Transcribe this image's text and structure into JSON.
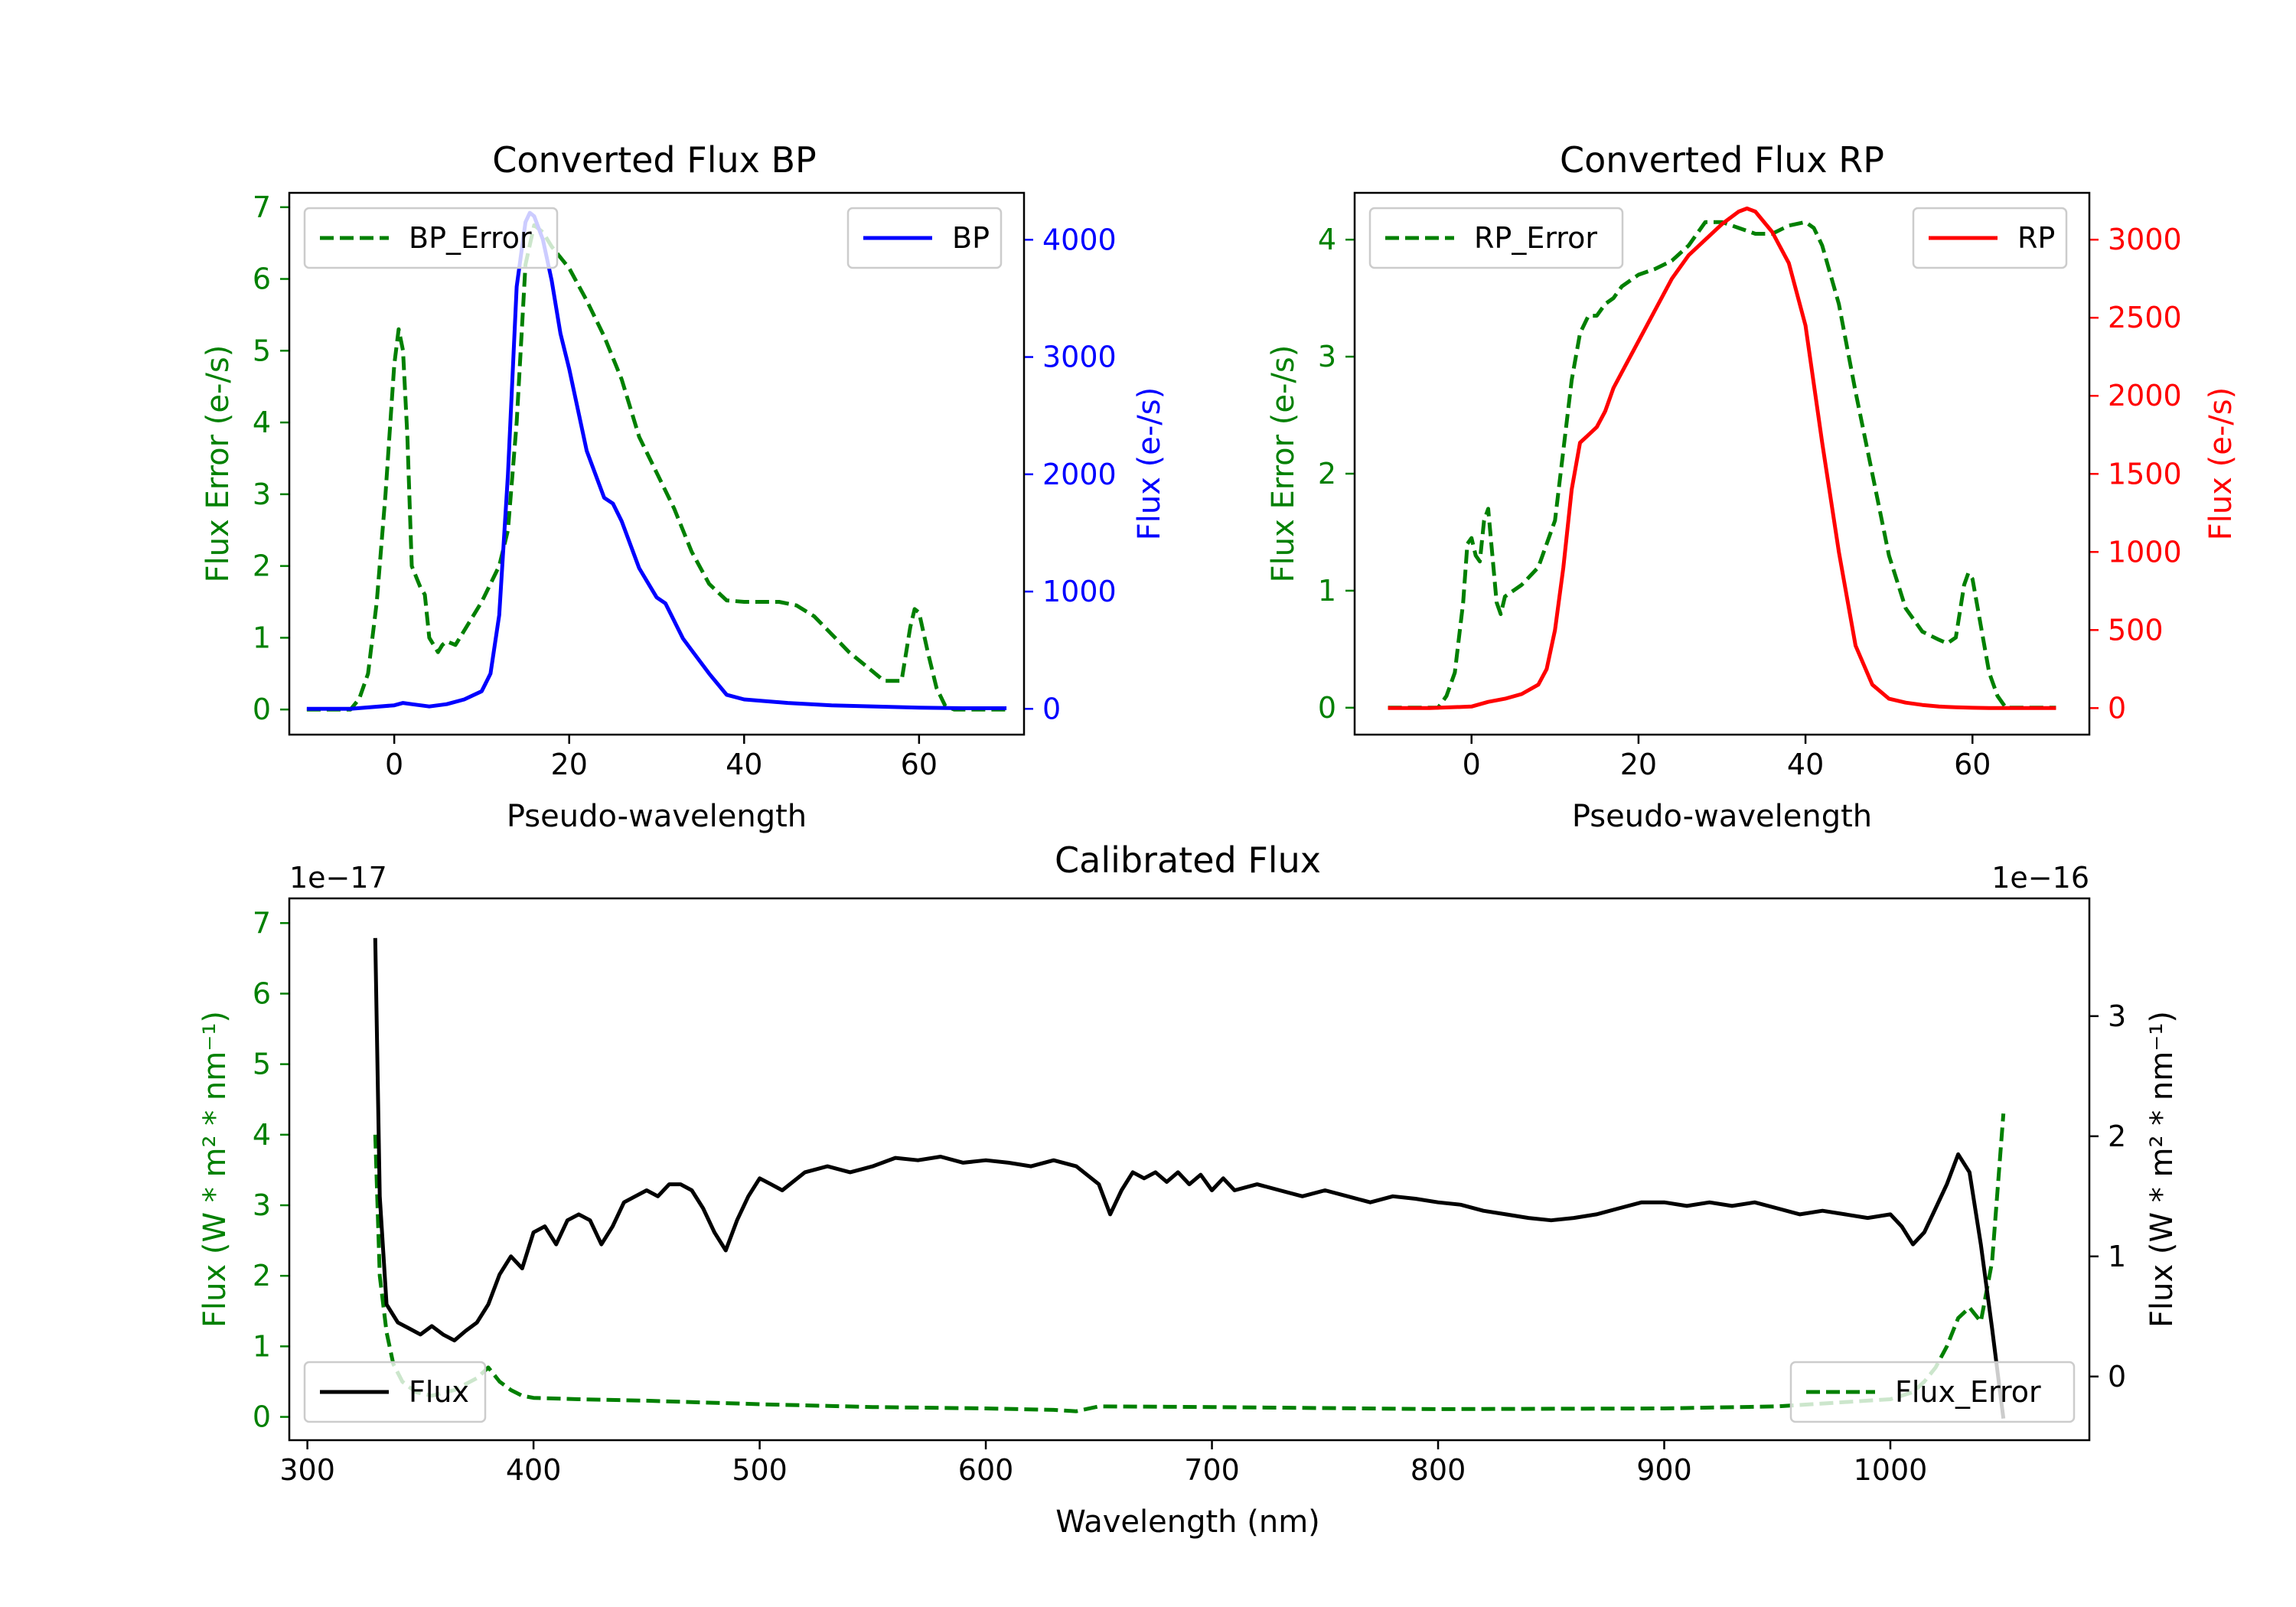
{
  "colors": {
    "error": "#008000",
    "bp": "#0000ff",
    "rp": "#ff0000",
    "flux": "#000000"
  },
  "chart_data": [
    {
      "id": "bp",
      "type": "line",
      "title": "Converted Flux BP",
      "xlabel": "Pseudo-wavelength",
      "ylabel_left": "Flux Error (e-/s)",
      "ylabel_right": "Flux (e-/s)",
      "xlim": [
        -12,
        72
      ],
      "ylim_left": [
        -0.35,
        7.2
      ],
      "ylim_right": [
        -220,
        4400
      ],
      "xticks": [
        "0",
        "20",
        "40",
        "60"
      ],
      "xtick_values": [
        0,
        20,
        40,
        60
      ],
      "yticks_left": [
        "0",
        "1",
        "2",
        "3",
        "4",
        "5",
        "6",
        "7"
      ],
      "ytick_values_left": [
        0,
        1,
        2,
        3,
        4,
        5,
        6,
        7
      ],
      "yticks_right": [
        "0",
        "1000",
        "2000",
        "3000",
        "4000"
      ],
      "ytick_values_right": [
        0,
        1000,
        2000,
        3000,
        4000
      ],
      "legend_left": "BP_Error",
      "legend_right": "BP",
      "series": [
        {
          "name": "BP_Error",
          "axis": "left",
          "style": "dashed",
          "color": "#008000",
          "x": [
            -10,
            -5,
            -4,
            -3,
            -2,
            -1,
            0,
            0.5,
            1,
            1.5,
            2,
            3,
            3.5,
            4,
            5,
            5.5,
            6,
            7,
            8,
            10,
            12,
            13,
            14,
            15,
            16,
            17,
            18,
            20,
            22,
            24,
            26,
            28,
            30,
            32,
            34,
            36,
            38,
            40,
            42,
            44,
            46,
            48,
            50,
            52,
            54,
            56,
            58,
            59,
            59.5,
            60,
            61,
            62,
            63,
            64,
            66,
            68,
            70
          ],
          "y": [
            0,
            0,
            0.15,
            0.5,
            1.5,
            3.0,
            4.8,
            5.3,
            5.0,
            3.8,
            2.0,
            1.7,
            1.6,
            1.0,
            0.8,
            0.9,
            0.95,
            0.9,
            1.1,
            1.5,
            2.0,
            2.5,
            4.0,
            6.2,
            6.75,
            6.65,
            6.45,
            6.15,
            5.7,
            5.2,
            4.6,
            3.8,
            3.3,
            2.8,
            2.2,
            1.75,
            1.52,
            1.5,
            1.5,
            1.5,
            1.45,
            1.3,
            1.05,
            0.8,
            0.6,
            0.4,
            0.4,
            1.15,
            1.4,
            1.35,
            0.8,
            0.3,
            0.05,
            0,
            0,
            0,
            0
          ]
        },
        {
          "name": "BP",
          "axis": "right",
          "style": "solid",
          "color": "#0000ff",
          "x": [
            -10,
            -5,
            0,
            1,
            2,
            4,
            6,
            8,
            10,
            11,
            12,
            13,
            14,
            15,
            15.5,
            16,
            17,
            18,
            19,
            20,
            22,
            24,
            25,
            26,
            27,
            28,
            30,
            31,
            32,
            33,
            34,
            36,
            38,
            40,
            45,
            50,
            55,
            60,
            65,
            70
          ],
          "y": [
            0,
            0,
            30,
            50,
            40,
            20,
            40,
            80,
            150,
            300,
            800,
            2000,
            3600,
            4150,
            4230,
            4200,
            4000,
            3650,
            3200,
            2900,
            2200,
            1800,
            1750,
            1600,
            1400,
            1200,
            950,
            900,
            750,
            600,
            500,
            300,
            120,
            80,
            50,
            30,
            20,
            10,
            5,
            5
          ]
        }
      ]
    },
    {
      "id": "rp",
      "type": "line",
      "title": "Converted Flux RP",
      "xlabel": "Pseudo-wavelength",
      "ylabel_left": "Flux Error (e-/s)",
      "ylabel_right": "Flux (e-/s)",
      "xlim": [
        -14,
        74
      ],
      "ylim_left": [
        -0.23,
        4.4
      ],
      "ylim_right": [
        -170,
        3300
      ],
      "xticks": [
        "0",
        "20",
        "40",
        "60"
      ],
      "xtick_values": [
        0,
        20,
        40,
        60
      ],
      "yticks_left": [
        "0",
        "1",
        "2",
        "3",
        "4"
      ],
      "ytick_values_left": [
        0,
        1,
        2,
        3,
        4
      ],
      "yticks_right": [
        "0",
        "500",
        "1000",
        "1500",
        "2000",
        "2500",
        "3000"
      ],
      "ytick_values_right": [
        0,
        500,
        1000,
        1500,
        2000,
        2500,
        3000
      ],
      "legend_left": "RP_Error",
      "legend_right": "RP",
      "series": [
        {
          "name": "RP_Error",
          "axis": "left",
          "style": "dashed",
          "color": "#008000",
          "x": [
            -10,
            -4,
            -3,
            -2,
            -1,
            -0.5,
            0,
            0.5,
            1,
            1.5,
            2,
            2.5,
            3,
            3.5,
            4,
            5,
            6,
            8,
            10,
            11,
            12,
            13,
            14,
            15,
            16,
            17,
            18,
            20,
            22,
            24,
            26,
            28,
            30,
            32,
            34,
            36,
            38,
            40,
            41,
            42,
            44,
            46,
            48,
            50,
            52,
            54,
            56,
            57,
            58,
            59,
            59.5,
            60,
            61,
            62,
            63,
            64,
            66,
            68,
            70
          ],
          "y": [
            0,
            0,
            0.1,
            0.3,
            0.9,
            1.4,
            1.45,
            1.3,
            1.25,
            1.6,
            1.7,
            1.3,
            0.9,
            0.8,
            0.95,
            1.0,
            1.05,
            1.2,
            1.6,
            2.2,
            2.8,
            3.2,
            3.35,
            3.35,
            3.45,
            3.5,
            3.6,
            3.7,
            3.75,
            3.82,
            3.95,
            4.15,
            4.15,
            4.1,
            4.05,
            4.05,
            4.12,
            4.15,
            4.1,
            3.95,
            3.45,
            2.7,
            2.0,
            1.3,
            0.85,
            0.65,
            0.58,
            0.55,
            0.6,
            1.05,
            1.15,
            1.1,
            0.7,
            0.3,
            0.1,
            0,
            0,
            0,
            0
          ]
        },
        {
          "name": "RP",
          "axis": "right",
          "style": "solid",
          "color": "#ff0000",
          "x": [
            -10,
            -5,
            0,
            2,
            4,
            6,
            8,
            9,
            10,
            11,
            12,
            13,
            14,
            15,
            16,
            17,
            18,
            20,
            22,
            24,
            26,
            28,
            30,
            32,
            33,
            34,
            36,
            37,
            38,
            40,
            42,
            44,
            46,
            48,
            50,
            52,
            54,
            56,
            58,
            60,
            62,
            65,
            70
          ],
          "y": [
            0,
            0,
            10,
            40,
            60,
            90,
            150,
            250,
            500,
            900,
            1400,
            1700,
            1750,
            1800,
            1900,
            2050,
            2150,
            2350,
            2550,
            2750,
            2900,
            3000,
            3100,
            3180,
            3200,
            3180,
            3050,
            2950,
            2850,
            2450,
            1700,
            1000,
            400,
            150,
            60,
            35,
            20,
            10,
            5,
            2,
            0,
            0,
            0
          ]
        }
      ]
    },
    {
      "id": "cal",
      "type": "line",
      "title": "Calibrated Flux",
      "xlabel": "Wavelength (nm)",
      "ylabel_left": "Flux (W * m² * nm⁻¹)",
      "ylabel_right": "Flux (W * m² * nm⁻¹)",
      "offset_left": "1e−17",
      "offset_right": "1e−16",
      "xlim": [
        292,
        1088
      ],
      "ylim_left": [
        -0.33,
        7.35
      ],
      "ylim_right": [
        -0.53,
        3.98
      ],
      "xticks": [
        "300",
        "400",
        "500",
        "600",
        "700",
        "800",
        "900",
        "1000"
      ],
      "xtick_values": [
        300,
        400,
        500,
        600,
        700,
        800,
        900,
        1000
      ],
      "yticks_left": [
        "0",
        "1",
        "2",
        "3",
        "4",
        "5",
        "6",
        "7"
      ],
      "ytick_values_left": [
        0,
        1,
        2,
        3,
        4,
        5,
        6,
        7
      ],
      "yticks_right": [
        "0",
        "1",
        "2",
        "3"
      ],
      "ytick_values_right": [
        0,
        1,
        2,
        3
      ],
      "legend_left": "Flux",
      "legend_right": "Flux_Error",
      "series": [
        {
          "name": "Flux_Error",
          "axis": "left",
          "style": "dashed",
          "color": "#008000",
          "x": [
            330,
            332,
            335,
            338,
            342,
            348,
            355,
            365,
            375,
            380,
            385,
            390,
            395,
            400,
            420,
            450,
            500,
            550,
            600,
            630,
            640,
            650,
            700,
            800,
            900,
            950,
            1000,
            1010,
            1015,
            1020,
            1025,
            1030,
            1035,
            1040,
            1045,
            1050
          ],
          "y": [
            4.0,
            2.0,
            1.2,
            0.75,
            0.5,
            0.35,
            0.3,
            0.38,
            0.55,
            0.7,
            0.5,
            0.38,
            0.3,
            0.27,
            0.25,
            0.23,
            0.18,
            0.14,
            0.12,
            0.1,
            0.08,
            0.15,
            0.14,
            0.11,
            0.12,
            0.15,
            0.25,
            0.35,
            0.5,
            0.7,
            1.0,
            1.4,
            1.55,
            1.35,
            2.2,
            4.3
          ]
        },
        {
          "name": "Flux",
          "axis": "right",
          "style": "solid",
          "color": "#000000",
          "x": [
            330,
            332,
            335,
            340,
            345,
            350,
            355,
            360,
            365,
            370,
            375,
            380,
            385,
            390,
            395,
            400,
            405,
            410,
            415,
            420,
            425,
            430,
            435,
            440,
            445,
            450,
            455,
            460,
            465,
            470,
            475,
            480,
            485,
            490,
            495,
            500,
            505,
            510,
            520,
            530,
            540,
            550,
            560,
            570,
            580,
            590,
            600,
            610,
            620,
            630,
            640,
            650,
            655,
            660,
            665,
            670,
            675,
            680,
            685,
            690,
            695,
            700,
            705,
            710,
            720,
            730,
            740,
            750,
            760,
            770,
            780,
            790,
            800,
            810,
            820,
            830,
            840,
            850,
            860,
            870,
            880,
            890,
            900,
            910,
            920,
            930,
            940,
            950,
            960,
            970,
            980,
            990,
            1000,
            1005,
            1010,
            1015,
            1020,
            1025,
            1030,
            1035,
            1040,
            1045,
            1050
          ],
          "y": [
            3.65,
            1.5,
            0.6,
            0.45,
            0.4,
            0.35,
            0.42,
            0.35,
            0.3,
            0.38,
            0.45,
            0.6,
            0.85,
            1.0,
            0.9,
            1.2,
            1.25,
            1.1,
            1.3,
            1.35,
            1.3,
            1.1,
            1.25,
            1.45,
            1.5,
            1.55,
            1.5,
            1.6,
            1.6,
            1.55,
            1.4,
            1.2,
            1.05,
            1.3,
            1.5,
            1.65,
            1.6,
            1.55,
            1.7,
            1.75,
            1.7,
            1.75,
            1.82,
            1.8,
            1.83,
            1.78,
            1.8,
            1.78,
            1.75,
            1.8,
            1.75,
            1.6,
            1.35,
            1.55,
            1.7,
            1.65,
            1.7,
            1.62,
            1.7,
            1.6,
            1.68,
            1.55,
            1.65,
            1.55,
            1.6,
            1.55,
            1.5,
            1.55,
            1.5,
            1.45,
            1.5,
            1.48,
            1.45,
            1.43,
            1.38,
            1.35,
            1.32,
            1.3,
            1.32,
            1.35,
            1.4,
            1.45,
            1.45,
            1.42,
            1.45,
            1.42,
            1.45,
            1.4,
            1.35,
            1.38,
            1.35,
            1.32,
            1.35,
            1.25,
            1.1,
            1.2,
            1.4,
            1.6,
            1.85,
            1.7,
            1.1,
            0.4,
            -0.35
          ]
        }
      ]
    }
  ]
}
